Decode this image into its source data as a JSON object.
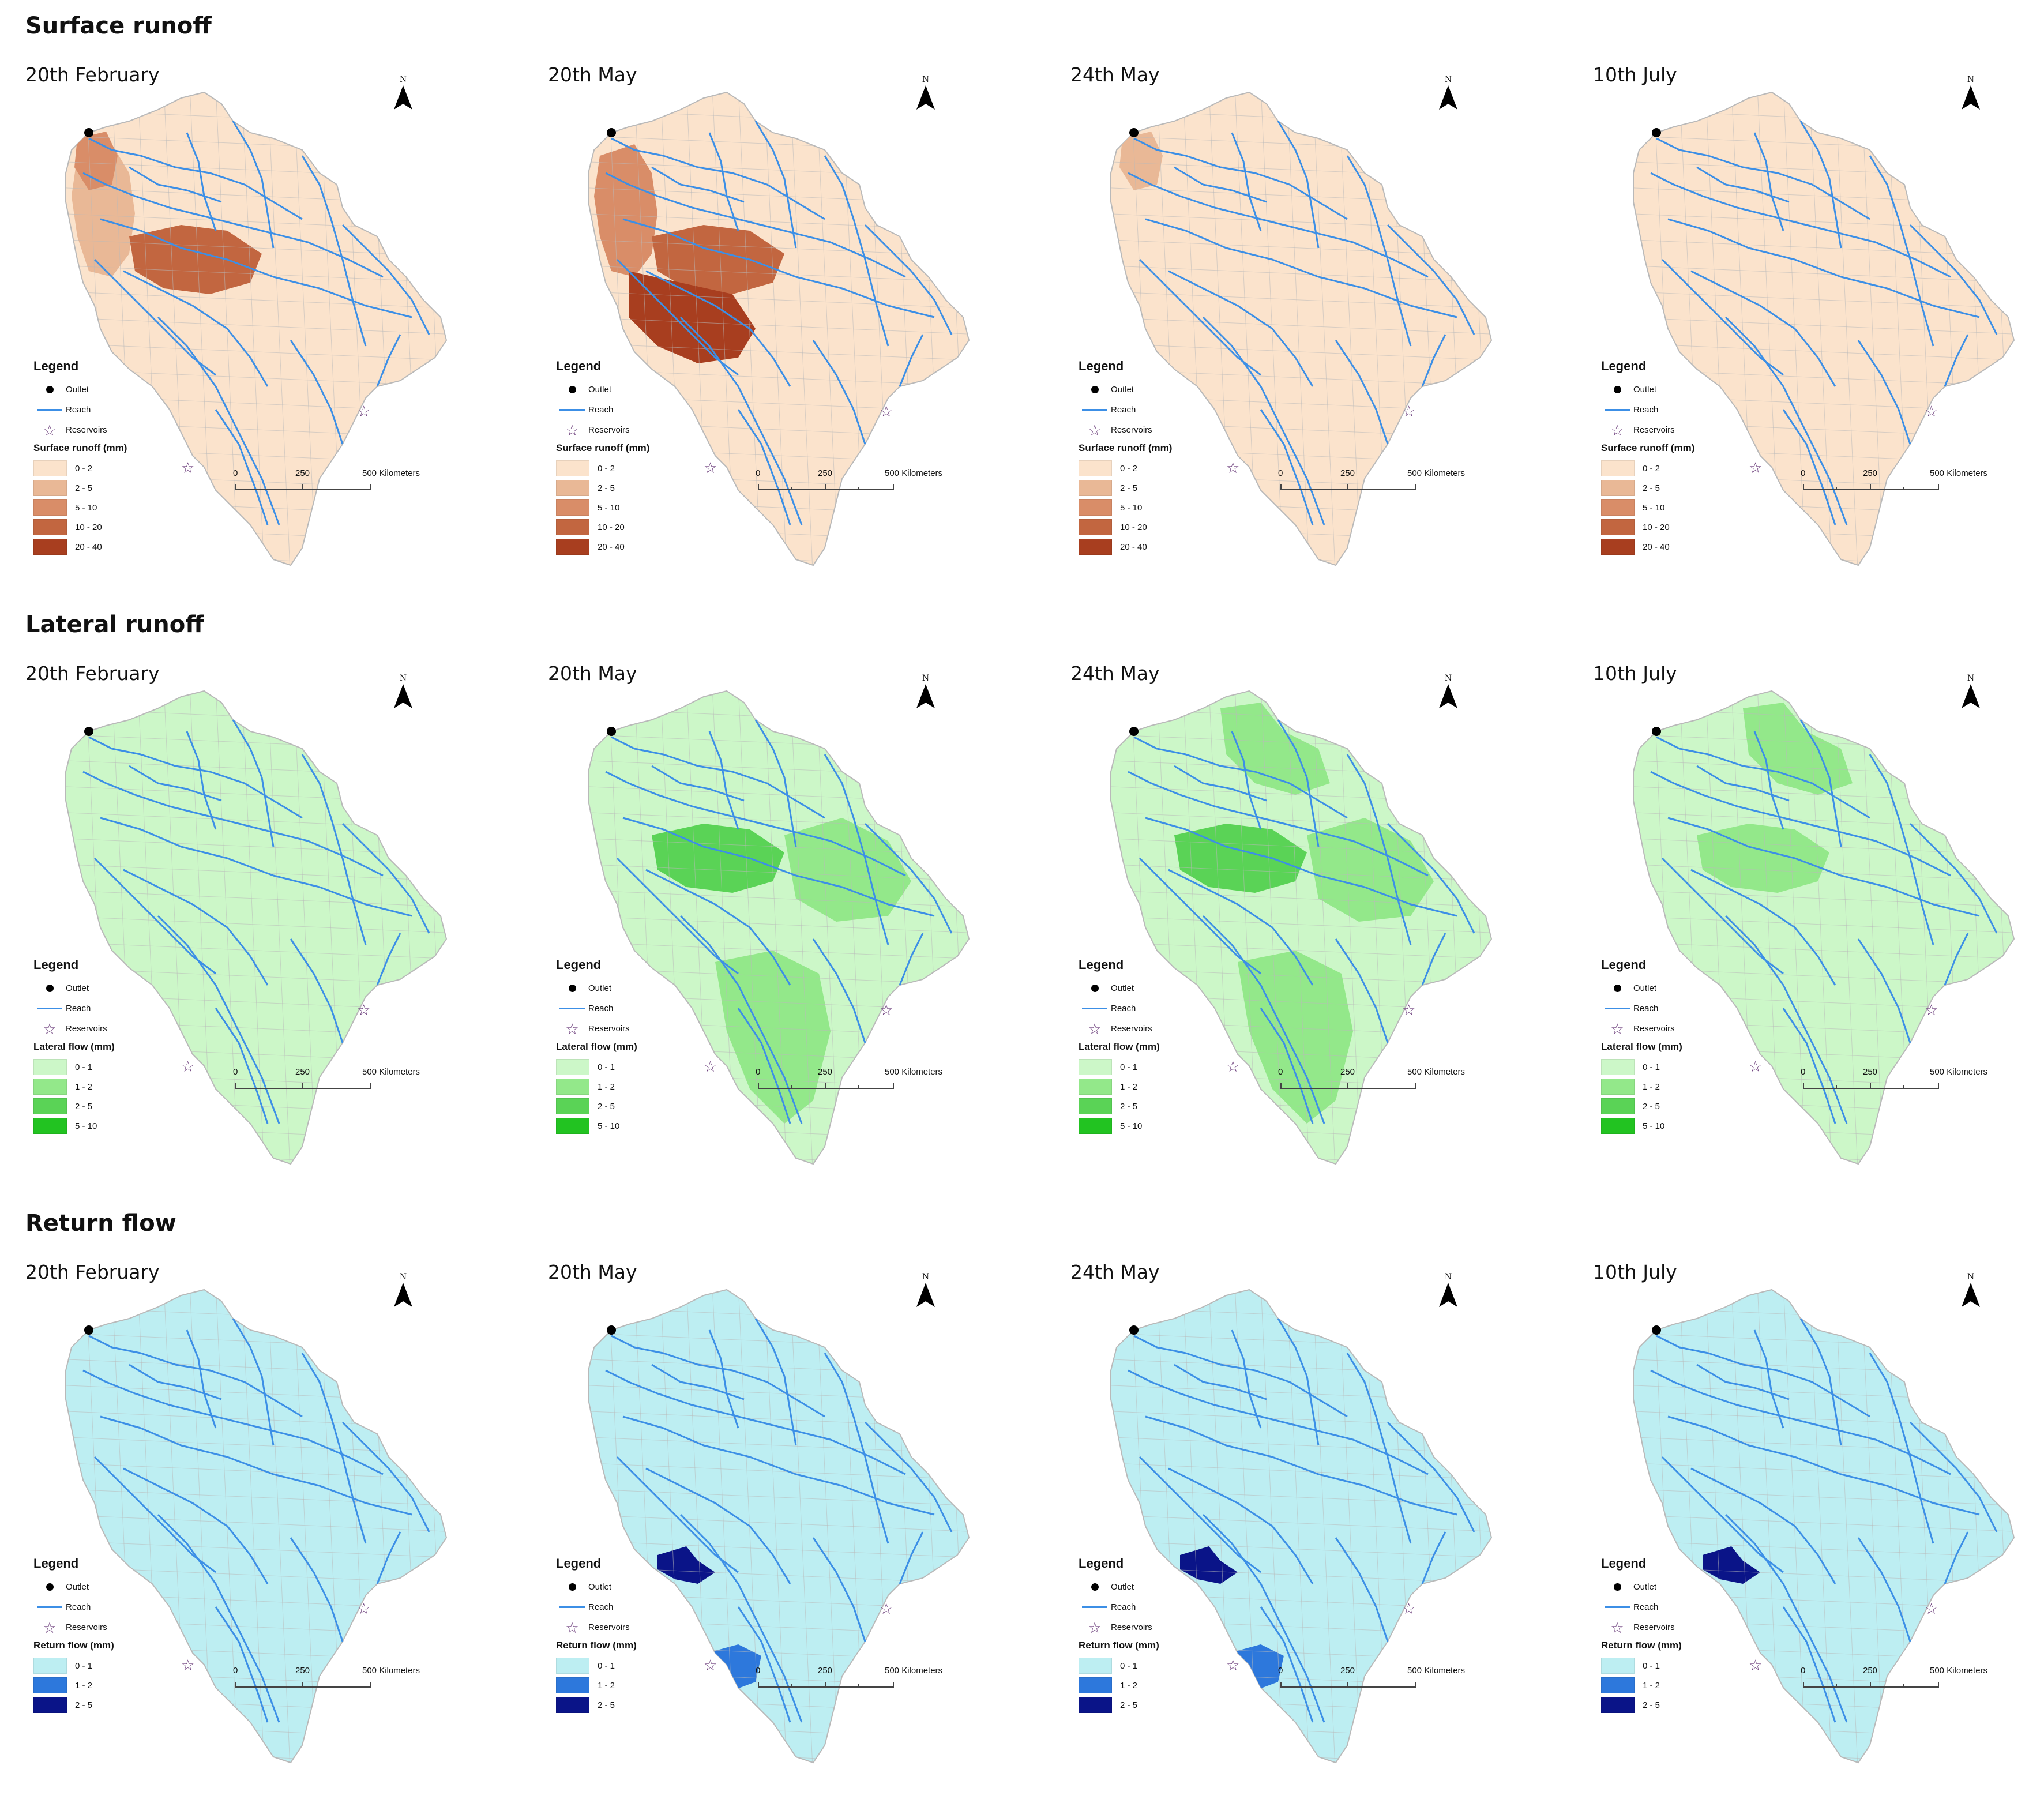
{
  "sections": [
    {
      "title": "Surface runoff",
      "ramp_title": "Surface runoff (mm)",
      "classes": [
        {
          "label": "0 - 2",
          "color": "#fbe3cc"
        },
        {
          "label": "2 - 5",
          "color": "#e9b896"
        },
        {
          "label": "5 - 10",
          "color": "#d98d68"
        },
        {
          "label": "10 - 20",
          "color": "#c26640"
        },
        {
          "label": "20 - 40",
          "color": "#a83e1f"
        }
      ],
      "panels": [
        {
          "date": "20th February",
          "highlights": [
            [
              1,
              "west"
            ],
            [
              2,
              "northwest"
            ],
            [
              3,
              "center"
            ]
          ]
        },
        {
          "date": "20th May",
          "highlights": [
            [
              2,
              "west"
            ],
            [
              3,
              "center"
            ],
            [
              4,
              "southwest"
            ]
          ]
        },
        {
          "date": "24th May",
          "highlights": [
            [
              1,
              "northwest"
            ]
          ]
        },
        {
          "date": "10th July",
          "highlights": []
        }
      ]
    },
    {
      "title": "Lateral runoff",
      "ramp_title": "Lateral flow (mm)",
      "classes": [
        {
          "label": "0 - 1",
          "color": "#ccf7c8"
        },
        {
          "label": "1 - 2",
          "color": "#93e88a"
        },
        {
          "label": "2 - 5",
          "color": "#5ad356"
        },
        {
          "label": "5 - 10",
          "color": "#22c321"
        }
      ],
      "panels": [
        {
          "date": "20th February",
          "highlights": []
        },
        {
          "date": "20th May",
          "highlights": [
            [
              1,
              "east"
            ],
            [
              1,
              "south"
            ],
            [
              2,
              "center"
            ]
          ]
        },
        {
          "date": "24th May",
          "highlights": [
            [
              1,
              "north"
            ],
            [
              1,
              "east"
            ],
            [
              1,
              "south"
            ],
            [
              2,
              "center"
            ]
          ]
        },
        {
          "date": "10th July",
          "highlights": [
            [
              1,
              "north"
            ],
            [
              1,
              "center"
            ]
          ]
        }
      ]
    },
    {
      "title": "Return flow",
      "ramp_title": "Return flow (mm)",
      "classes": [
        {
          "label": "0 - 1",
          "color": "#bdeef2"
        },
        {
          "label": "1 - 2",
          "color": "#2d78dc"
        },
        {
          "label": "2 - 5",
          "color": "#0a1488"
        }
      ],
      "panels": [
        {
          "date": "20th February",
          "highlights": []
        },
        {
          "date": "20th May",
          "highlights": [
            [
              2,
              "reservoir-west"
            ],
            [
              1,
              "reservoir-south"
            ]
          ]
        },
        {
          "date": "24th May",
          "highlights": [
            [
              2,
              "reservoir-west"
            ],
            [
              1,
              "reservoir-south"
            ]
          ]
        },
        {
          "date": "10th July",
          "highlights": [
            [
              2,
              "reservoir-west"
            ]
          ]
        }
      ]
    }
  ],
  "legend": {
    "title": "Legend",
    "outlet": "Outlet",
    "reach": "Reach",
    "reservoirs": "Reservoirs"
  },
  "north_letter": "N",
  "scale": {
    "t0": "0",
    "t1": "250",
    "t2": "500 Kilometers"
  },
  "colors": {
    "reach": "#3c8fe6",
    "boundary": "#b9b9b9",
    "star": "#6a3c7a"
  }
}
